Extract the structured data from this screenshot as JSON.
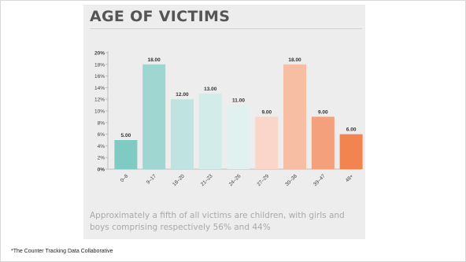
{
  "title": "AGE OF VICTIMS",
  "caption": "Approximately a fifth of all victims are children, with girls and boys comprising respectively 56% and 44%",
  "footnote": "*The Counter Tracking Data Collaborative",
  "colors": {
    "panel_background": "#ededed",
    "title": "#555555",
    "bars": [
      "#7fcac3",
      "#9fd6d1",
      "#bfe3e0",
      "#d2ecea",
      "#e1f1ef",
      "#f9d6c9",
      "#f7bea4",
      "#f5a07c",
      "#f2844f"
    ]
  },
  "chart_data": {
    "type": "bar",
    "categories": [
      "0–8",
      "9–17",
      "18–20",
      "21–23",
      "24–26",
      "27–29",
      "30–38",
      "39–47",
      "48+"
    ],
    "values": [
      5.0,
      18.0,
      12.0,
      13.0,
      11.0,
      9.0,
      18.0,
      9.0,
      6.0
    ],
    "value_labels": [
      "5.00",
      "18.00",
      "12.00",
      "13.00",
      "11.00",
      "9.00",
      "18.00",
      "9.00",
      "6.00"
    ],
    "yticks": [
      "0%",
      "2%",
      "4%",
      "6%",
      "8%",
      "10%",
      "12%",
      "14%",
      "16%",
      "18%",
      "20%"
    ],
    "ylim": [
      0,
      20
    ],
    "grid": false,
    "legend": "none"
  }
}
